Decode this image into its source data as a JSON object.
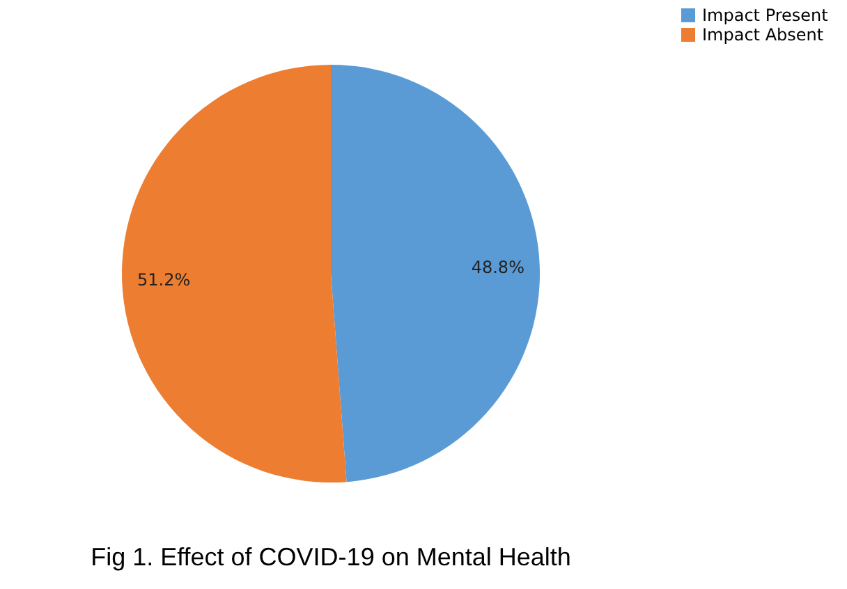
{
  "chart_data": {
    "type": "pie",
    "title": "Fig 1. Effect of COVID-19 on Mental Health",
    "categories": [
      "Impact Present",
      "Impact Absent"
    ],
    "values": [
      48.8,
      51.2
    ],
    "colors": [
      "#5b9bd5",
      "#ed7d31"
    ],
    "value_labels": [
      "48.8%",
      "51.2%"
    ],
    "legend": "right"
  }
}
